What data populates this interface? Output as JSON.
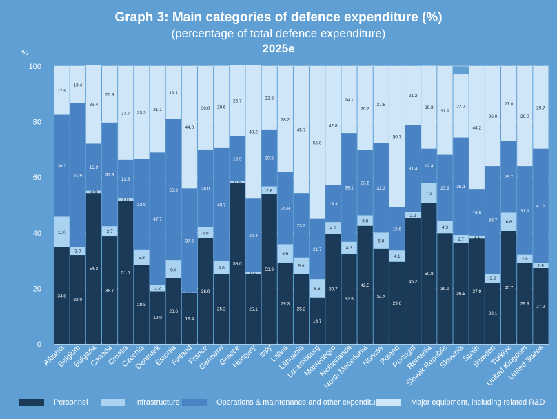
{
  "title": "Graph 3: Main categories of defence expenditure (%)",
  "subtitle": "(percentage of total defence expenditure)",
  "year_label": "2025e",
  "chart_data": {
    "type": "bar",
    "stacked": true,
    "title": "Graph 3: Main categories of defence expenditure (%)",
    "subtitle": "(percentage of total defence expenditure)",
    "ylabel": "%",
    "ylim": [
      0,
      100
    ],
    "yticks": [
      0,
      20,
      40,
      60,
      80,
      100
    ],
    "grid": true,
    "legend_position": "bottom",
    "categories": [
      "Albania",
      "Belgium",
      "Bulgaria",
      "Canada",
      "Croatia",
      "Czechia",
      "Denmark",
      "Estonia",
      "Finland",
      "France",
      "Germany",
      "Greece",
      "Hungary",
      "Italy",
      "Latvia",
      "Lithuania",
      "Luxembourg",
      "Montenegro",
      "Netherlands",
      "North Macedonia",
      "Norway",
      "Poland",
      "Portugal",
      "Romania",
      "Slovak Republic",
      "Slovenia",
      "Spain",
      "Sweden",
      "Türkiye",
      "United Kingdom",
      "United States"
    ],
    "series": [
      {
        "name": "Personnel",
        "color": "#1a3a57",
        "label_color": "#ffffff",
        "values": [
          34.8,
          32.0,
          54.3,
          38.7,
          51.5,
          28.5,
          19.0,
          23.6,
          18.4,
          38.0,
          25.2,
          58.0,
          25.1,
          53.9,
          29.3,
          25.2,
          16.7,
          39.7,
          32.5,
          42.5,
          34.3,
          29.6,
          45.2,
          50.8,
          39.9,
          36.5,
          37.9,
          22.1,
          40.7,
          29.3,
          27.3
        ]
      },
      {
        "name": "Infrastructure",
        "color": "#a9d3f0",
        "label_color": "#1a2a3a",
        "values": [
          11.0,
          3.0,
          0.9,
          3.7,
          1.0,
          5.3,
          2.2,
          6.4,
          0.1,
          4.0,
          4.6,
          0.8,
          0.9,
          2.8,
          6.6,
          5.9,
          6.6,
          4.2,
          4.3,
          3.8,
          5.8,
          4.1,
          2.2,
          7.1,
          4.3,
          2.7,
          1.1,
          3.2,
          6.6,
          2.8,
          1.9
        ]
      },
      {
        "name": "Operations & maintenance and other expenditures",
        "color": "#4a83c4",
        "label_color": "#ffffff",
        "values": [
          36.7,
          51.6,
          16.9,
          37.3,
          13.8,
          32.9,
          47.7,
          50.9,
          37.5,
          28.0,
          40.7,
          15.9,
          26.3,
          20.5,
          25.9,
          23.2,
          21.7,
          13.3,
          39.1,
          23.5,
          32.3,
          15.6,
          31.4,
          12.4,
          23.9,
          35.1,
          16.8,
          38.7,
          25.7,
          31.9,
          41.1
        ]
      },
      {
        "name": "Major equipment, including related R&D",
        "color": "#cfe6f8",
        "label_color": "#1a2a3a",
        "values": [
          17.5,
          13.4,
          28.4,
          20.3,
          33.7,
          33.3,
          31.1,
          19.1,
          44.0,
          30.0,
          29.6,
          25.7,
          48.2,
          22.8,
          38.2,
          45.7,
          55.0,
          42.8,
          24.1,
          30.2,
          27.6,
          50.7,
          21.2,
          29.8,
          31.9,
          22.7,
          44.2,
          36.0,
          27.0,
          36.0,
          29.7
        ]
      }
    ]
  },
  "legend": [
    {
      "label": "Personnel",
      "color": "#1a3a57"
    },
    {
      "label": "Infrastructure",
      "color": "#a9d3f0"
    },
    {
      "label": "Operations & maintenance and other expenditures",
      "color": "#4a83c4"
    },
    {
      "label": "Major equipment, including related R&D",
      "color": "#cfe6f8"
    }
  ]
}
